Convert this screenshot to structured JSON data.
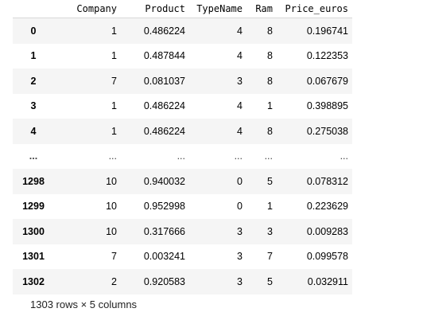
{
  "table": {
    "columns": [
      "",
      "Company",
      "Product",
      "TypeName",
      "Ram",
      "Price_euros"
    ],
    "rows": [
      {
        "index": "0",
        "cells": [
          "1",
          "0.486224",
          "4",
          "8",
          "0.196741"
        ]
      },
      {
        "index": "1",
        "cells": [
          "1",
          "0.487844",
          "4",
          "8",
          "0.122353"
        ]
      },
      {
        "index": "2",
        "cells": [
          "7",
          "0.081037",
          "3",
          "8",
          "0.067679"
        ]
      },
      {
        "index": "3",
        "cells": [
          "1",
          "0.486224",
          "4",
          "1",
          "0.398895"
        ]
      },
      {
        "index": "4",
        "cells": [
          "1",
          "0.486224",
          "4",
          "8",
          "0.275038"
        ]
      },
      {
        "index": "...",
        "cells": [
          "...",
          "...",
          "...",
          "...",
          "..."
        ]
      },
      {
        "index": "1298",
        "cells": [
          "10",
          "0.940032",
          "0",
          "5",
          "0.078312"
        ]
      },
      {
        "index": "1299",
        "cells": [
          "10",
          "0.952998",
          "0",
          "1",
          "0.223629"
        ]
      },
      {
        "index": "1300",
        "cells": [
          "10",
          "0.317666",
          "3",
          "3",
          "0.009283"
        ]
      },
      {
        "index": "1301",
        "cells": [
          "7",
          "0.003241",
          "3",
          "7",
          "0.099578"
        ]
      },
      {
        "index": "1302",
        "cells": [
          "2",
          "0.920583",
          "3",
          "5",
          "0.032911"
        ]
      }
    ]
  },
  "shape_text": "1303 rows × 5 columns"
}
